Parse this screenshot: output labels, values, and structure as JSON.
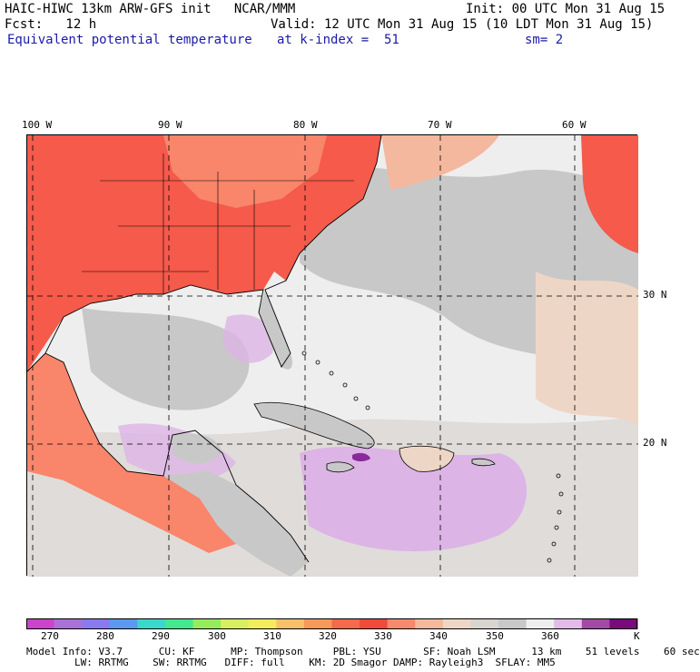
{
  "header": {
    "line1_left": "HAIC-HIWC 13km ARW-GFS init   NCAR/MMM",
    "line1_right": "Init: 00 UTC Mon 31 Aug 15",
    "line2_left": "Fcst:   12 h",
    "line2_right": "Valid: 12 UTC Mon 31 Aug 15 (10 LDT Mon 31 Aug 15)",
    "line3_field": "Equivalent potential temperature",
    "line3_level": "at k-index =  51",
    "line3_smooth": "sm= 2"
  },
  "map": {
    "lon_labels": [
      "100 W",
      "90 W",
      "80 W",
      "70 W",
      "60 W"
    ],
    "lat_labels": [
      "30 N",
      "20 N"
    ],
    "colors": {
      "land_hot": "#f55a4a",
      "land_warm": "#f9856b",
      "gray": "#c8c8c8",
      "light": "#eeeeee",
      "lavender": "#ddb4e6",
      "purple": "#8a2a9a",
      "border": "#000000"
    }
  },
  "colorbar": {
    "unit": "K",
    "tick_labels": [
      "270",
      "280",
      "290",
      "300",
      "310",
      "320",
      "330",
      "340",
      "350",
      "360"
    ],
    "colors": [
      "#cc44cc",
      "#a872d8",
      "#8a7af0",
      "#5a9af0",
      "#3ad8c8",
      "#44e890",
      "#96ec5c",
      "#d6f060",
      "#f2ec5e",
      "#f8c06a",
      "#f59a5a",
      "#f56a4a",
      "#f24a3a",
      "#f58a6c",
      "#f4b89e",
      "#eed6c6",
      "#d8d4d0",
      "#c8c8c8",
      "#eeeeee",
      "#e2bce8",
      "#a44aa4",
      "#7a0a7a"
    ]
  },
  "footer": {
    "line1": "Model Info: V3.7      CU: KF      MP: Thompson     PBL: YSU       SF: Noah LSM      13 km    51 levels    60 sec",
    "line2": "        LW: RRTMG    SW: RRTMG   DIFF: full    KM: 2D Smagor DAMP: Rayleigh3  SFLAY: MM5"
  }
}
